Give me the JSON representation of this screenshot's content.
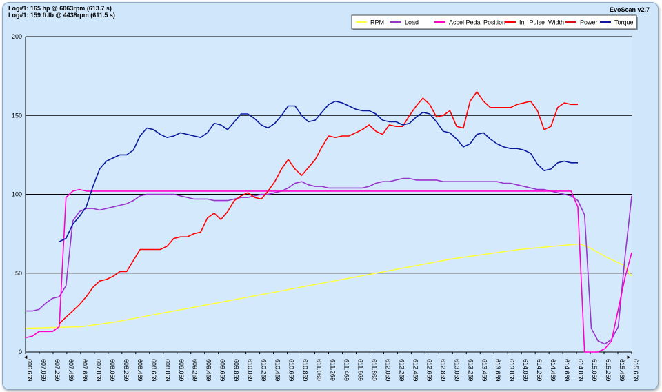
{
  "header": {
    "log_line_1": "Log#1: 165 hp @ 6063rpm (613.7 s)",
    "log_line_2": "Log#1: 159 ft.lb @ 4438rpm (611.5 s)",
    "app_version": "EvoScan v2.7"
  },
  "chart_data": {
    "type": "line",
    "ylim": [
      0,
      200
    ],
    "yticks": [
      0,
      50,
      100,
      150,
      200
    ],
    "xlim": [
      606.669,
      615.669
    ],
    "x_tick_labels": [
      "606.669",
      "607.069",
      "607.269",
      "607.469",
      "607.669",
      "607.869",
      "608.069",
      "608.269",
      "608.469",
      "608.669",
      "608.869",
      "609.069",
      "609.269",
      "609.469",
      "609.669",
      "609.869",
      "610.069",
      "610.269",
      "610.469",
      "610.669",
      "610.869",
      "611.069",
      "611.269",
      "611.469",
      "611.669",
      "611.869",
      "612.069",
      "612.269",
      "612.469",
      "612.669",
      "612.869",
      "613.069",
      "613.269",
      "613.469",
      "613.669",
      "613.869",
      "614.069",
      "614.269",
      "614.469",
      "614.669",
      "614.869",
      "615.069",
      "615.269",
      "615.469",
      "615.669"
    ],
    "grid": "horizontal",
    "legend_position": "top-right",
    "series": [
      {
        "name": "RPM",
        "color": "#ffff40",
        "x": [
          606.67,
          607.5,
          608.0,
          608.5,
          609.0,
          609.5,
          610.0,
          610.5,
          611.0,
          611.5,
          612.0,
          612.5,
          613.0,
          613.5,
          614.0,
          614.5,
          614.9,
          615.05,
          615.3,
          615.55,
          615.67
        ],
        "values": [
          15,
          16,
          19,
          23,
          27,
          31,
          35,
          39,
          43,
          47,
          51,
          55,
          59,
          62,
          65,
          67,
          68.5,
          66,
          60,
          55,
          48
        ]
      },
      {
        "name": "Load",
        "color": "#9933cc",
        "x": [
          606.67,
          606.77,
          606.87,
          606.97,
          607.07,
          607.17,
          607.27,
          607.37,
          607.47,
          607.57,
          607.67,
          607.77,
          607.87,
          607.97,
          608.07,
          608.17,
          608.27,
          608.37,
          608.47,
          608.57,
          608.67,
          608.77,
          608.87,
          608.97,
          609.07,
          609.17,
          609.27,
          609.37,
          609.47,
          609.57,
          609.67,
          609.77,
          609.87,
          609.97,
          610.07,
          610.17,
          610.27,
          610.37,
          610.47,
          610.57,
          610.67,
          610.77,
          610.87,
          610.97,
          611.07,
          611.17,
          611.27,
          611.37,
          611.47,
          611.57,
          611.67,
          611.77,
          611.87,
          611.97,
          612.07,
          612.17,
          612.27,
          612.37,
          612.47,
          612.57,
          612.67,
          612.77,
          612.87,
          612.97,
          613.07,
          613.17,
          613.27,
          613.37,
          613.47,
          613.57,
          613.67,
          613.77,
          613.87,
          613.97,
          614.07,
          614.17,
          614.27,
          614.37,
          614.47,
          614.57,
          614.67,
          614.77,
          614.87,
          614.97,
          615.07,
          615.17,
          615.27,
          615.37,
          615.47,
          615.57,
          615.67
        ],
        "values": [
          26,
          26,
          27,
          31,
          34,
          35,
          42,
          83,
          89,
          91,
          91,
          90,
          91,
          92,
          93,
          94,
          96,
          99,
          100,
          100,
          100,
          100,
          100,
          99,
          98,
          97,
          97,
          97,
          96,
          96,
          96,
          97,
          98,
          98,
          99,
          100,
          100,
          101,
          102,
          104,
          107,
          108,
          106,
          105,
          105,
          104,
          104,
          104,
          104,
          104,
          104,
          105,
          107,
          108,
          108,
          109,
          110,
          110,
          109,
          109,
          109,
          109,
          108,
          108,
          108,
          108,
          108,
          108,
          108,
          108,
          108,
          107,
          107,
          106,
          105,
          104,
          103,
          103,
          102,
          101,
          100,
          99,
          96,
          87,
          15,
          7,
          5,
          8,
          16,
          60,
          99
        ]
      },
      {
        "name": "Accel Pedal Position",
        "color": "#ff00cc",
        "x": [
          606.67,
          606.77,
          606.87,
          606.97,
          607.07,
          607.17,
          607.27,
          607.32,
          607.37,
          607.47,
          607.57,
          607.67,
          607.77,
          607.87,
          608.0,
          608.5,
          609.0,
          609.5,
          610.0,
          610.5,
          611.0,
          611.5,
          612.0,
          612.5,
          613.0,
          613.5,
          614.0,
          614.5,
          614.77,
          614.87,
          614.97,
          615.07,
          615.17,
          615.27,
          615.37,
          615.47,
          615.57,
          615.67
        ],
        "values": [
          9,
          10,
          13,
          13,
          13,
          16,
          98,
          100,
          102,
          103,
          102,
          102,
          102,
          102,
          102,
          102,
          102,
          102,
          102,
          102,
          102,
          102,
          102,
          102,
          102,
          102,
          102,
          102,
          102,
          92,
          0,
          0,
          0,
          2,
          7,
          27,
          47,
          63
        ]
      },
      {
        "name": "Inj_Pulse_Width",
        "color": "#ff0000",
        "x": [
          607.17,
          607.27,
          607.37,
          607.47,
          607.57,
          607.67,
          607.77,
          607.87,
          607.97,
          608.07,
          608.17,
          608.27,
          608.37,
          608.47,
          608.57,
          608.67,
          608.77,
          608.87,
          608.97,
          609.07,
          609.17,
          609.27,
          609.37,
          609.47,
          609.57,
          609.67,
          609.77,
          609.87,
          609.97,
          610.07,
          610.17,
          610.27,
          610.37,
          610.47,
          610.57,
          610.67,
          610.77,
          610.87,
          610.97,
          611.07,
          611.17,
          611.27,
          611.37,
          611.47,
          611.57,
          611.67,
          611.77,
          611.87,
          611.97,
          612.07,
          612.17,
          612.27,
          612.37,
          612.47,
          612.57,
          612.67,
          612.77,
          612.87,
          612.97,
          613.07,
          613.17,
          613.27,
          613.37,
          613.47,
          613.57,
          613.67,
          613.77,
          613.87,
          613.97,
          614.07,
          614.17,
          614.27,
          614.37,
          614.47,
          614.57,
          614.67,
          614.77,
          614.87
        ],
        "values": [
          18,
          22,
          26,
          30,
          35,
          41,
          45,
          46,
          48,
          51,
          51,
          58,
          65,
          65,
          65,
          65,
          67,
          72,
          73,
          73,
          75,
          76,
          85,
          88,
          84,
          89,
          96,
          99,
          101,
          98,
          97,
          102,
          108,
          116,
          122,
          116,
          112,
          117,
          122,
          130,
          137,
          136,
          137,
          137,
          139,
          141,
          144,
          140,
          138,
          144,
          143,
          143,
          150,
          156,
          161,
          157,
          149,
          150,
          153,
          143,
          142,
          159,
          165,
          159,
          155,
          155,
          155,
          155,
          157,
          158,
          159,
          153,
          141,
          143,
          155,
          158,
          157,
          157
        ]
      },
      {
        "name": "Power",
        "color": "#dd1111",
        "x": [],
        "values": []
      },
      {
        "name": "Torque",
        "color": "#0a1a9a",
        "x": [
          607.17,
          607.27,
          607.37,
          607.47,
          607.57,
          607.67,
          607.77,
          607.87,
          607.97,
          608.07,
          608.17,
          608.27,
          608.37,
          608.47,
          608.57,
          608.67,
          608.77,
          608.87,
          608.97,
          609.07,
          609.17,
          609.27,
          609.37,
          609.47,
          609.57,
          609.67,
          609.77,
          609.87,
          609.97,
          610.07,
          610.17,
          610.27,
          610.37,
          610.47,
          610.57,
          610.67,
          610.77,
          610.87,
          610.97,
          611.07,
          611.17,
          611.27,
          611.37,
          611.47,
          611.57,
          611.67,
          611.77,
          611.87,
          611.97,
          612.07,
          612.17,
          612.27,
          612.37,
          612.47,
          612.57,
          612.67,
          612.77,
          612.87,
          612.97,
          613.07,
          613.17,
          613.27,
          613.37,
          613.47,
          613.57,
          613.67,
          613.77,
          613.87,
          613.97,
          614.07,
          614.17,
          614.27,
          614.37,
          614.47,
          614.57,
          614.67,
          614.77,
          614.87
        ],
        "values": [
          70,
          72,
          81,
          86,
          92,
          105,
          116,
          121,
          123,
          125,
          125,
          128,
          137,
          142,
          141,
          138,
          136,
          137,
          139,
          138,
          137,
          136,
          139,
          145,
          144,
          141,
          146,
          151,
          151,
          148,
          144,
          142,
          145,
          150,
          156,
          156,
          150,
          146,
          147,
          152,
          157,
          159,
          158,
          156,
          154,
          153,
          153,
          151,
          147,
          146,
          146,
          144,
          145,
          149,
          152,
          151,
          146,
          140,
          139,
          135,
          130,
          132,
          138,
          139,
          135,
          132,
          130,
          129,
          129,
          128,
          126,
          119,
          115,
          116,
          120,
          121,
          120,
          120
        ]
      }
    ]
  }
}
